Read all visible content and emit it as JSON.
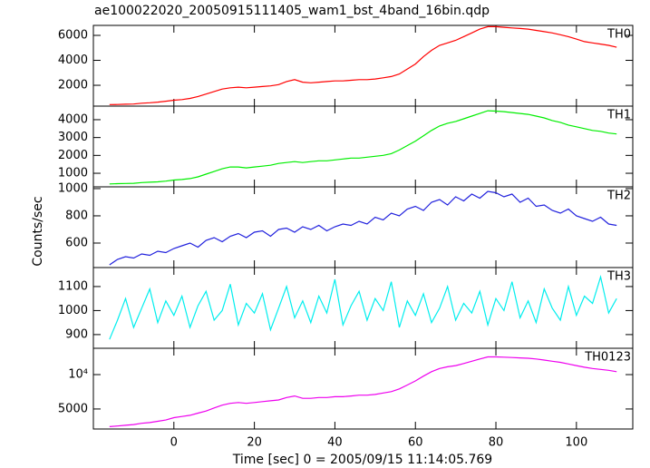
{
  "chart_data": {
    "type": "line",
    "title": "ae100022020_20050915111405_wam1_bst_4band_16bin.qdp",
    "xlabel": "Time [sec] 0 = 2005/09/15 11:14:05.769",
    "ylabel": "Counts/sec",
    "xlim": [
      -20,
      114
    ],
    "xticks": [
      0,
      20,
      40,
      60,
      80,
      100
    ],
    "x": [
      -16,
      -14,
      -12,
      -10,
      -8,
      -6,
      -4,
      -2,
      0,
      2,
      4,
      6,
      8,
      10,
      12,
      14,
      16,
      18,
      20,
      22,
      24,
      26,
      28,
      30,
      32,
      34,
      36,
      38,
      40,
      42,
      44,
      46,
      48,
      50,
      52,
      54,
      56,
      58,
      60,
      62,
      64,
      66,
      68,
      70,
      72,
      74,
      76,
      78,
      80,
      82,
      84,
      86,
      88,
      90,
      92,
      94,
      96,
      98,
      100,
      102,
      104,
      106,
      108,
      110
    ],
    "panels": [
      {
        "name": "TH0",
        "color": "#ff0000",
        "ylim": [
          330,
          6800
        ],
        "yticks": [
          2000,
          4000,
          6000
        ],
        "log": false,
        "values": [
          450,
          460,
          480,
          500,
          560,
          600,
          650,
          720,
          800,
          850,
          950,
          1100,
          1300,
          1500,
          1700,
          1800,
          1850,
          1800,
          1850,
          1900,
          1950,
          2050,
          2300,
          2450,
          2250,
          2200,
          2250,
          2300,
          2350,
          2350,
          2400,
          2450,
          2450,
          2500,
          2600,
          2700,
          2900,
          3300,
          3700,
          4300,
          4800,
          5200,
          5400,
          5600,
          5900,
          6200,
          6500,
          6700,
          6700,
          6650,
          6600,
          6550,
          6500,
          6400,
          6300,
          6200,
          6050,
          5900,
          5700,
          5500,
          5400,
          5300,
          5200,
          5050
        ]
      },
      {
        "name": "TH1",
        "color": "#00ee00",
        "ylim": [
          240,
          4760
        ],
        "yticks": [
          1000,
          2000,
          3000,
          4000
        ],
        "log": false,
        "values": [
          400,
          420,
          430,
          440,
          480,
          500,
          520,
          560,
          620,
          650,
          700,
          800,
          950,
          1100,
          1250,
          1350,
          1350,
          1300,
          1350,
          1400,
          1450,
          1550,
          1600,
          1650,
          1600,
          1650,
          1700,
          1700,
          1750,
          1800,
          1850,
          1850,
          1900,
          1950,
          2000,
          2100,
          2300,
          2550,
          2800,
          3100,
          3400,
          3650,
          3800,
          3900,
          4050,
          4200,
          4350,
          4500,
          4480,
          4450,
          4400,
          4350,
          4300,
          4200,
          4100,
          3950,
          3850,
          3700,
          3600,
          3500,
          3400,
          3350,
          3250,
          3200
        ]
      },
      {
        "name": "TH2",
        "color": "#2222dd",
        "ylim": [
          420,
          1013
        ],
        "yticks": [
          600,
          800,
          1000
        ],
        "log": false,
        "values": [
          440,
          480,
          500,
          490,
          520,
          510,
          540,
          530,
          560,
          580,
          600,
          570,
          620,
          640,
          610,
          650,
          670,
          640,
          680,
          690,
          650,
          700,
          710,
          680,
          720,
          700,
          730,
          690,
          720,
          740,
          730,
          760,
          740,
          790,
          770,
          820,
          800,
          850,
          870,
          840,
          900,
          920,
          880,
          940,
          910,
          960,
          930,
          980,
          970,
          940,
          960,
          900,
          930,
          870,
          880,
          840,
          820,
          850,
          800,
          780,
          760,
          790,
          740,
          730
        ]
      },
      {
        "name": "TH3",
        "color": "#00eeee",
        "ylim": [
          843,
          1179
        ],
        "yticks": [
          900,
          1000,
          1100
        ],
        "log": false,
        "values": [
          880,
          960,
          1050,
          930,
          1010,
          1090,
          950,
          1040,
          980,
          1060,
          930,
          1020,
          1080,
          960,
          1000,
          1110,
          940,
          1030,
          990,
          1070,
          920,
          1010,
          1100,
          970,
          1040,
          950,
          1060,
          990,
          1130,
          940,
          1020,
          1080,
          960,
          1050,
          1000,
          1120,
          930,
          1040,
          980,
          1070,
          950,
          1010,
          1100,
          960,
          1030,
          990,
          1080,
          940,
          1050,
          1000,
          1120,
          970,
          1040,
          950,
          1090,
          1010,
          960,
          1100,
          980,
          1060,
          1030,
          1140,
          990,
          1050
        ]
      },
      {
        "name": "TH0123",
        "color": "#ee00ee",
        "ylim": [
          3340,
          17000
        ],
        "yticks": [
          5000,
          {
            "value": 10000,
            "label": "10⁴"
          }
        ],
        "log": true,
        "values": [
          3500,
          3550,
          3600,
          3650,
          3750,
          3800,
          3900,
          4000,
          4200,
          4300,
          4400,
          4600,
          4800,
          5100,
          5400,
          5600,
          5700,
          5600,
          5700,
          5800,
          5900,
          6000,
          6300,
          6500,
          6200,
          6200,
          6300,
          6300,
          6400,
          6400,
          6500,
          6600,
          6600,
          6700,
          6900,
          7100,
          7500,
          8100,
          8800,
          9700,
          10600,
          11300,
          11700,
          12000,
          12500,
          13100,
          13700,
          14300,
          14300,
          14200,
          14100,
          14000,
          13900,
          13700,
          13400,
          13100,
          12800,
          12400,
          12000,
          11600,
          11300,
          11100,
          10900,
          10600
        ]
      }
    ]
  }
}
